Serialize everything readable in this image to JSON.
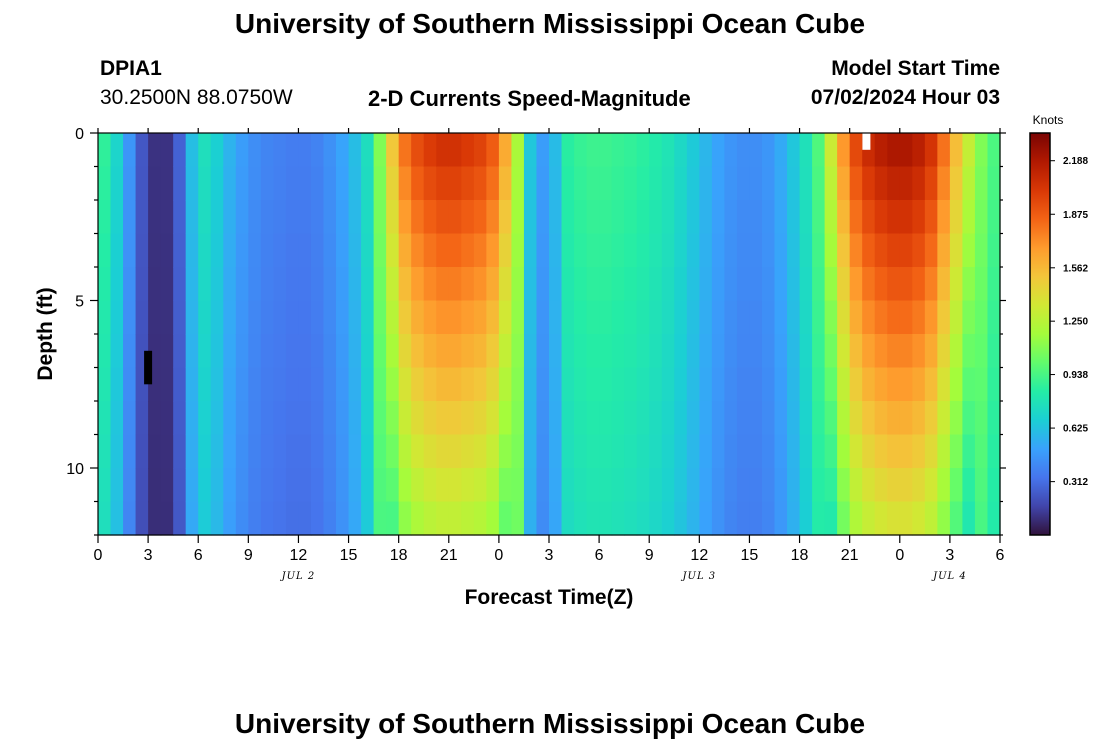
{
  "header": {
    "title": "University of Southern Mississippi Ocean Cube",
    "station": "DPIA1",
    "coords": "30.2500N  88.0750W",
    "plot_title": "2-D Currents Speed-Magnitude",
    "model_label": "Model Start Time",
    "model_time": "07/02/2024 Hour 03"
  },
  "footer": {
    "title": "University of Southern Mississippi Ocean Cube"
  },
  "colors": {
    "scale": [
      "#30123b",
      "#4145ab",
      "#4675ed",
      "#39a2fc",
      "#1bcfd4",
      "#24eca6",
      "#61fc6c",
      "#a4fc3b",
      "#d1e834",
      "#f3c63a",
      "#fe9b2d",
      "#f36315",
      "#d93806",
      "#b11901",
      "#7a0403"
    ]
  },
  "chart_data": {
    "type": "heatmap",
    "title": "2-D Currents Speed-Magnitude",
    "xlabel": "Forecast Time(Z)",
    "ylabel": "Depth (ft)",
    "x_tick_labels": [
      "0",
      "3",
      "6",
      "9",
      "12",
      "15",
      "18",
      "21",
      "0",
      "3",
      "6",
      "9",
      "12",
      "15",
      "18",
      "21",
      "0",
      "3",
      "6"
    ],
    "y_tick_labels": [
      "0",
      "5",
      "10"
    ],
    "ylim": [
      0,
      12
    ],
    "xlim_hours": [
      0,
      54
    ],
    "date_labels": [
      {
        "label": "JUL 2",
        "hour": 12
      },
      {
        "label": "JUL 3",
        "hour": 36
      },
      {
        "label": "JUL 4",
        "hour": 51
      }
    ],
    "colorbar": {
      "unit": "Knots",
      "min": 0,
      "max": 2.35,
      "ticks": [
        "0.312",
        "0.625",
        "0.938",
        "1.250",
        "1.562",
        "1.875",
        "2.188"
      ]
    },
    "surface_profile_hours": [
      0,
      1,
      2,
      3,
      4,
      5,
      6,
      7,
      8,
      9,
      10,
      11,
      12,
      13,
      14,
      15,
      16,
      17,
      18,
      19,
      20,
      21,
      22,
      23,
      24,
      25,
      26,
      27,
      28,
      29,
      30,
      31,
      32,
      33,
      34,
      35,
      36,
      37,
      38,
      39,
      40,
      41,
      42,
      43,
      44,
      45,
      46,
      47,
      48,
      49,
      50,
      51,
      52,
      53,
      54
    ],
    "surface_speed_knots": [
      0.95,
      0.75,
      0.42,
      0.12,
      0.08,
      0.3,
      0.8,
      0.7,
      0.55,
      0.45,
      0.4,
      0.38,
      0.36,
      0.38,
      0.45,
      0.55,
      0.7,
      1.15,
      1.75,
      1.95,
      2.05,
      2.1,
      2.05,
      2.0,
      1.85,
      1.3,
      0.55,
      0.45,
      0.85,
      0.9,
      0.92,
      0.9,
      0.88,
      0.85,
      0.8,
      0.72,
      0.62,
      0.52,
      0.45,
      0.42,
      0.45,
      0.55,
      0.7,
      0.9,
      1.4,
      1.9,
      2.1,
      2.2,
      2.25,
      2.2,
      2.05,
      1.7,
      1.35,
      1.05,
      0.9
    ],
    "markers": [
      {
        "hour": 3,
        "depth_from": 6.5,
        "depth_to": 7.5,
        "color": "#000000"
      },
      {
        "hour": 46,
        "depth_from": 0,
        "depth_to": 0.5,
        "color": "#ffffff"
      }
    ]
  }
}
